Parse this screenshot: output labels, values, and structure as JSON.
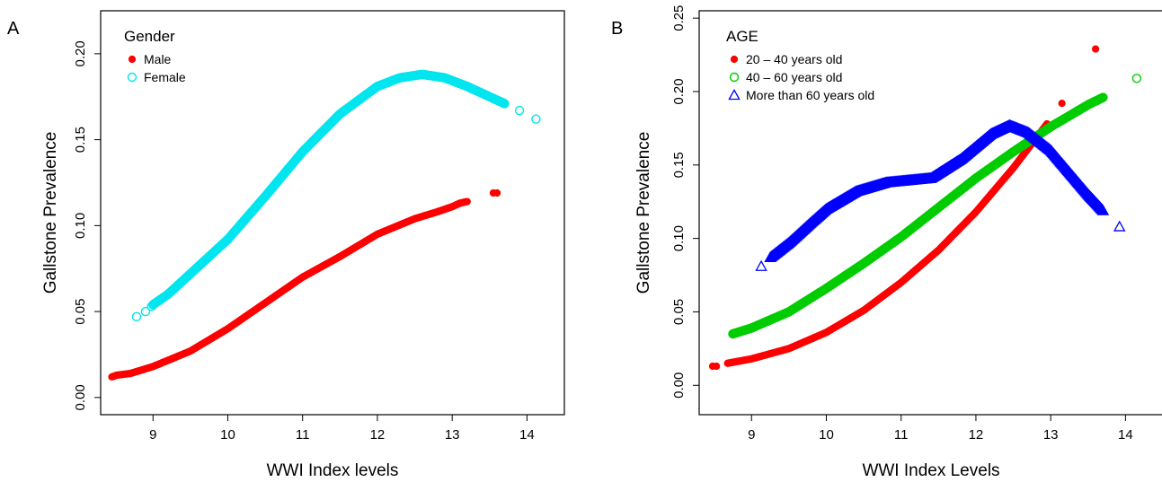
{
  "chart_data": [
    {
      "type": "scatter",
      "panel_label": "A",
      "xlabel": "WWI Index levels",
      "ylabel": "Gallstone Prevalence",
      "xlim": [
        8.3,
        14.5
      ],
      "ylim": [
        -0.01,
        0.225
      ],
      "xticks": [
        9,
        10,
        11,
        12,
        13,
        14
      ],
      "yticks": [
        "0.00",
        "0.05",
        "0.10",
        "0.15",
        "0.20"
      ],
      "legend_title": "Gender",
      "legend_position": "top-left",
      "grid": false,
      "series": [
        {
          "name": "Male",
          "marker": "filled-circle",
          "color": "#ff0000",
          "points": [
            [
              8.45,
              0.012
            ],
            [
              8.52,
              0.013
            ],
            [
              8.7,
              0.014
            ],
            [
              9.0,
              0.018
            ],
            [
              9.5,
              0.027
            ],
            [
              10.0,
              0.04
            ],
            [
              10.5,
              0.055
            ],
            [
              11.0,
              0.07
            ],
            [
              11.5,
              0.082
            ],
            [
              12.0,
              0.095
            ],
            [
              12.5,
              0.104
            ],
            [
              12.8,
              0.108
            ],
            [
              13.0,
              0.111
            ],
            [
              13.1,
              0.113
            ],
            [
              13.2,
              0.114
            ]
          ],
          "outliers": [
            [
              13.55,
              0.119
            ],
            [
              13.6,
              0.119
            ]
          ]
        },
        {
          "name": "Female",
          "marker": "open-circle",
          "color": "#00e5ee",
          "points": [
            [
              9.0,
              0.054
            ],
            [
              9.2,
              0.06
            ],
            [
              9.5,
              0.072
            ],
            [
              10.0,
              0.092
            ],
            [
              10.5,
              0.117
            ],
            [
              11.0,
              0.143
            ],
            [
              11.5,
              0.165
            ],
            [
              12.0,
              0.181
            ],
            [
              12.3,
              0.186
            ],
            [
              12.6,
              0.188
            ],
            [
              12.9,
              0.186
            ],
            [
              13.2,
              0.181
            ],
            [
              13.5,
              0.175
            ],
            [
              13.7,
              0.171
            ]
          ],
          "outliers": [
            [
              8.78,
              0.047
            ],
            [
              8.9,
              0.05
            ],
            [
              8.98,
              0.053
            ],
            [
              13.9,
              0.167
            ],
            [
              14.12,
              0.162
            ]
          ]
        }
      ]
    },
    {
      "type": "scatter",
      "panel_label": "B",
      "xlabel": "WWI Index Levels",
      "ylabel": "Gallstone Prevalence",
      "xlim": [
        8.3,
        14.5
      ],
      "ylim": [
        -0.02,
        0.255
      ],
      "xticks": [
        9,
        10,
        11,
        12,
        13,
        14
      ],
      "yticks": [
        "0.00",
        "0.05",
        "0.10",
        "0.15",
        "0.20",
        "0.25"
      ],
      "legend_title": "AGE",
      "legend_position": "top-left",
      "grid": false,
      "series": [
        {
          "name": "20 – 40 years old",
          "marker": "filled-circle",
          "color": "#ff0000",
          "points": [
            [
              8.68,
              0.015
            ],
            [
              9.0,
              0.018
            ],
            [
              9.5,
              0.025
            ],
            [
              10.0,
              0.036
            ],
            [
              10.5,
              0.051
            ],
            [
              11.0,
              0.07
            ],
            [
              11.5,
              0.092
            ],
            [
              12.0,
              0.118
            ],
            [
              12.5,
              0.148
            ],
            [
              12.8,
              0.168
            ],
            [
              12.95,
              0.178
            ]
          ],
          "outliers": [
            [
              8.48,
              0.013
            ],
            [
              8.53,
              0.013
            ],
            [
              13.15,
              0.192
            ],
            [
              13.6,
              0.229
            ]
          ]
        },
        {
          "name": "40 – 60 years old",
          "marker": "open-circle",
          "color": "#00cc00",
          "points": [
            [
              8.75,
              0.035
            ],
            [
              9.0,
              0.039
            ],
            [
              9.5,
              0.05
            ],
            [
              10.0,
              0.066
            ],
            [
              10.5,
              0.083
            ],
            [
              11.0,
              0.101
            ],
            [
              11.5,
              0.121
            ],
            [
              12.0,
              0.141
            ],
            [
              12.5,
              0.159
            ],
            [
              13.0,
              0.176
            ],
            [
              13.2,
              0.182
            ],
            [
              13.5,
              0.191
            ],
            [
              13.7,
              0.196
            ]
          ],
          "outliers": [
            [
              14.15,
              0.209
            ]
          ]
        },
        {
          "name": "More than 60 years old",
          "marker": "open-triangle",
          "color": "#0000ff",
          "points": [
            [
              9.25,
              0.087
            ],
            [
              9.5,
              0.097
            ],
            [
              9.8,
              0.111
            ],
            [
              10.0,
              0.12
            ],
            [
              10.4,
              0.132
            ],
            [
              10.8,
              0.138
            ],
            [
              11.0,
              0.139
            ],
            [
              11.4,
              0.141
            ],
            [
              11.8,
              0.154
            ],
            [
              12.2,
              0.171
            ],
            [
              12.45,
              0.177
            ],
            [
              12.7,
              0.172
            ],
            [
              13.0,
              0.16
            ],
            [
              13.3,
              0.142
            ],
            [
              13.5,
              0.13
            ],
            [
              13.7,
              0.119
            ]
          ],
          "outliers": [
            [
              9.13,
              0.081
            ],
            [
              13.92,
              0.108
            ]
          ]
        }
      ]
    }
  ]
}
